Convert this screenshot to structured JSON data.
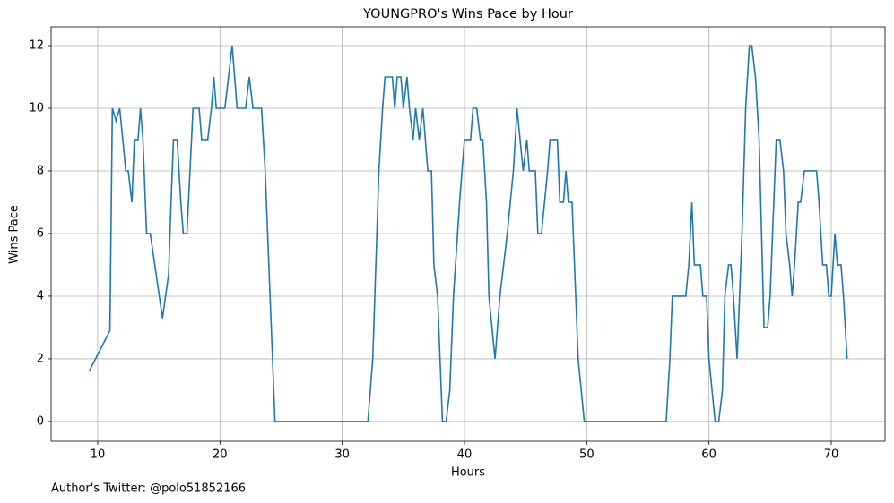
{
  "chart_data": {
    "type": "line",
    "title": "YOUNGPRO's Wins Pace by Hour",
    "xlabel": "Hours",
    "ylabel": "Wins Pace",
    "annotation": "Author's Twitter: @polo51852166",
    "x": [
      9.3,
      11.0,
      11.2,
      11.5,
      11.8,
      12.3,
      12.5,
      12.8,
      13.0,
      13.3,
      13.5,
      13.7,
      14.0,
      14.3,
      15.3,
      15.8,
      16.0,
      16.2,
      16.5,
      16.8,
      17.0,
      17.3,
      17.6,
      17.8,
      18.3,
      18.5,
      19.0,
      19.3,
      19.5,
      19.7,
      20.4,
      21.0,
      21.4,
      22.1,
      22.4,
      22.7,
      23.4,
      23.7,
      24.0,
      24.2,
      24.5,
      32.1,
      32.5,
      33.0,
      33.3,
      33.5,
      34.1,
      34.3,
      34.5,
      34.8,
      35.0,
      35.3,
      35.5,
      35.8,
      36.0,
      36.3,
      36.6,
      37.0,
      37.3,
      37.5,
      37.8,
      38.0,
      38.2,
      38.5,
      38.8,
      39.1,
      39.6,
      40.0,
      40.5,
      40.7,
      41.0,
      41.3,
      41.5,
      41.8,
      42.0,
      42.5,
      42.9,
      43.5,
      44.0,
      44.3,
      44.8,
      45.1,
      45.3,
      45.8,
      46.0,
      46.3,
      46.8,
      47.0,
      47.6,
      47.8,
      48.1,
      48.3,
      48.5,
      48.8,
      49.0,
      49.3,
      49.8,
      56.5,
      56.8,
      57.0,
      58.1,
      58.35,
      58.6,
      58.8,
      59.3,
      59.5,
      59.8,
      60.0,
      60.5,
      60.8,
      61.1,
      61.3,
      61.6,
      61.8,
      62.0,
      62.3,
      62.7,
      63.0,
      63.3,
      63.5,
      63.8,
      64.1,
      64.5,
      64.8,
      65.0,
      65.2,
      65.5,
      65.8,
      66.1,
      66.3,
      66.6,
      66.8,
      67.0,
      67.3,
      67.5,
      67.8,
      68.8,
      69.0,
      69.3,
      69.6,
      69.8,
      70.0,
      70.3,
      70.5,
      70.8,
      71.0,
      71.3
    ],
    "series": [
      {
        "name": "Wins Pace",
        "color": "#1f77b4",
        "values": [
          1.6,
          2.9,
          10,
          9.6,
          10,
          8,
          8,
          7,
          9,
          9,
          10,
          9,
          6,
          6,
          3.3,
          4.7,
          7,
          9,
          9,
          7,
          6,
          6,
          8.4,
          10,
          10,
          9,
          9,
          10,
          11,
          10,
          10,
          12,
          10,
          10,
          11,
          10,
          10,
          8,
          5,
          3,
          0,
          0,
          2,
          8,
          10,
          11,
          11,
          10,
          11,
          11,
          10,
          11,
          10,
          9,
          10,
          9,
          10,
          8,
          8,
          5,
          4,
          2,
          0,
          0,
          1,
          4,
          7,
          9,
          9,
          10,
          10,
          9,
          9,
          7,
          4,
          2,
          4,
          6,
          8,
          10,
          8,
          9,
          8,
          8,
          6,
          6,
          8,
          9,
          9,
          7,
          7,
          8,
          7,
          7,
          5,
          2,
          0,
          0,
          2,
          4,
          4,
          5,
          7,
          5,
          5,
          4,
          4,
          2,
          0,
          0,
          1,
          4,
          5,
          5,
          4,
          2,
          6,
          10,
          12,
          12,
          11,
          9,
          3,
          3,
          4,
          6,
          9,
          9,
          8,
          6,
          5,
          4,
          5,
          7,
          7,
          8,
          8,
          7,
          5,
          5,
          4,
          4,
          6,
          5,
          5,
          4,
          2
        ]
      }
    ],
    "xlim": [
      6.19,
      74.4
    ],
    "ylim": [
      -0.63,
      12.6
    ],
    "xticks": [
      10,
      20,
      30,
      40,
      50,
      60,
      70
    ],
    "yticks": [
      0,
      2,
      4,
      6,
      8,
      10,
      12
    ],
    "grid": true
  }
}
